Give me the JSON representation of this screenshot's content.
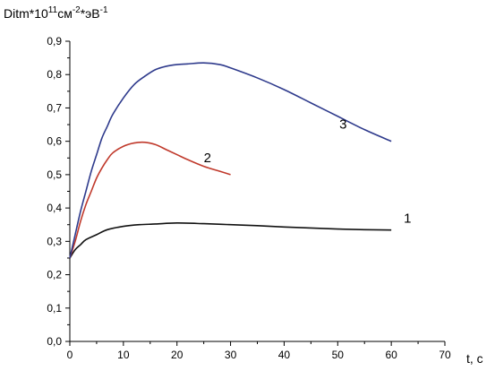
{
  "chart_data": {
    "type": "line",
    "ylabel": {
      "base": "Ditm*10",
      "exp1": "11",
      "mid": "см",
      "exp2": "-2",
      "mid2": "*эВ",
      "exp3": "-1"
    },
    "xlabel": "t, c",
    "xlim": [
      0,
      70
    ],
    "ylim": [
      0,
      0.9
    ],
    "x_ticks": [
      "0",
      "10",
      "20",
      "30",
      "40",
      "50",
      "60",
      "70"
    ],
    "y_ticks": [
      "0,0",
      "0,1",
      "0,2",
      "0,3",
      "0,4",
      "0,5",
      "0,6",
      "0,7",
      "0,8",
      "0,9"
    ],
    "grid": false,
    "series": [
      {
        "name": "1",
        "color": "#111111",
        "points": [
          [
            0,
            0.25
          ],
          [
            1,
            0.275
          ],
          [
            2,
            0.29
          ],
          [
            3,
            0.305
          ],
          [
            5,
            0.32
          ],
          [
            7,
            0.335
          ],
          [
            10,
            0.345
          ],
          [
            13,
            0.35
          ],
          [
            16,
            0.352
          ],
          [
            20,
            0.355
          ],
          [
            25,
            0.353
          ],
          [
            30,
            0.35
          ],
          [
            35,
            0.347
          ],
          [
            40,
            0.343
          ],
          [
            45,
            0.34
          ],
          [
            50,
            0.337
          ],
          [
            55,
            0.335
          ],
          [
            60,
            0.334
          ]
        ]
      },
      {
        "name": "2",
        "color": "#c0392b",
        "points": [
          [
            0,
            0.25
          ],
          [
            1,
            0.3
          ],
          [
            2,
            0.36
          ],
          [
            3,
            0.41
          ],
          [
            4,
            0.45
          ],
          [
            5,
            0.49
          ],
          [
            6,
            0.52
          ],
          [
            7,
            0.545
          ],
          [
            8,
            0.565
          ],
          [
            10,
            0.585
          ],
          [
            12,
            0.595
          ],
          [
            14,
            0.597
          ],
          [
            16,
            0.59
          ],
          [
            18,
            0.575
          ],
          [
            20,
            0.56
          ],
          [
            22,
            0.545
          ],
          [
            25,
            0.525
          ],
          [
            28,
            0.51
          ],
          [
            30,
            0.5
          ]
        ]
      },
      {
        "name": "3",
        "color": "#2e3a8c",
        "points": [
          [
            0,
            0.25
          ],
          [
            1,
            0.32
          ],
          [
            2,
            0.39
          ],
          [
            3,
            0.45
          ],
          [
            4,
            0.51
          ],
          [
            5,
            0.56
          ],
          [
            6,
            0.61
          ],
          [
            7,
            0.645
          ],
          [
            8,
            0.68
          ],
          [
            10,
            0.73
          ],
          [
            12,
            0.77
          ],
          [
            14,
            0.795
          ],
          [
            16,
            0.815
          ],
          [
            18,
            0.825
          ],
          [
            20,
            0.83
          ],
          [
            22,
            0.832
          ],
          [
            25,
            0.835
          ],
          [
            28,
            0.83
          ],
          [
            30,
            0.82
          ],
          [
            35,
            0.79
          ],
          [
            40,
            0.755
          ],
          [
            45,
            0.715
          ],
          [
            50,
            0.675
          ],
          [
            55,
            0.635
          ],
          [
            60,
            0.6
          ]
        ]
      }
    ]
  }
}
